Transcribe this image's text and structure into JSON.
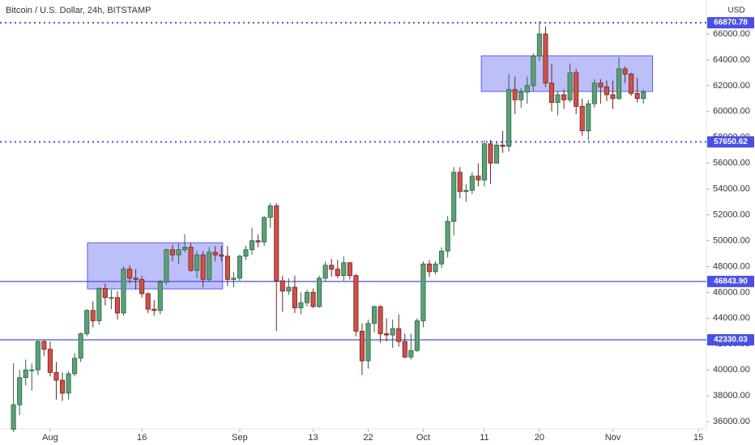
{
  "chart_data": {
    "type": "candlestick",
    "title": "Bitcoin / U.S. Dollar, 24h, BITSTAMP",
    "y_axis_label": "USD",
    "up_color": "#5aa176",
    "up_border": "#2d6444",
    "down_color": "#cf5149",
    "down_border": "#6e231f",
    "level_color": "#4a50e6",
    "zone_color": "#5a5ff0",
    "x": [
      -6,
      -5,
      -4,
      -3,
      -2,
      -1,
      0,
      1,
      2,
      3,
      4,
      5,
      6,
      7,
      8,
      9,
      10,
      11,
      12,
      13,
      14,
      15,
      16,
      17,
      18,
      19,
      20,
      21,
      22,
      23,
      24,
      25,
      26,
      27,
      28,
      29,
      30,
      31,
      32,
      33,
      34,
      35,
      36,
      37,
      38,
      39,
      40,
      41,
      42,
      43,
      44,
      45,
      46,
      47,
      48,
      49,
      50,
      51,
      52,
      53,
      54,
      55,
      56,
      57,
      58,
      59,
      60,
      61,
      62,
      63,
      64,
      65,
      66,
      67,
      68,
      69,
      70,
      71,
      72,
      73,
      74,
      75,
      76,
      77,
      78,
      79,
      80,
      81,
      82,
      83,
      84,
      85,
      86,
      87,
      88,
      89,
      90,
      91,
      92,
      93,
      94,
      95,
      96,
      97
    ],
    "open": [
      35400,
      37300,
      39400,
      40000,
      40000,
      42200,
      41600,
      39800,
      39200,
      38200,
      39700,
      40900,
      42800,
      44600,
      43800,
      46300,
      45600,
      45600,
      44400,
      47800,
      47100,
      47000,
      45900,
      44700,
      44600,
      46800,
      49300,
      48900,
      49300,
      49500,
      47700,
      48900,
      47000,
      49100,
      48900,
      48800,
      47000,
      47100,
      48800,
      49300,
      50000,
      49900,
      51800,
      52700,
      46900,
      46100,
      46400,
      44800,
      45200,
      46000,
      44900,
      47100,
      48100,
      47800,
      47300,
      48300,
      47300,
      43000,
      40700,
      43600,
      44900,
      42800,
      42700,
      43200,
      42200,
      41000,
      41500,
      43800,
      48200,
      47600,
      48200,
      49200,
      51500,
      55300,
      53800,
      53900,
      55000,
      54700,
      57500,
      56000,
      57400,
      57300,
      61700,
      60900,
      61500,
      62000,
      64300,
      66000,
      62200,
      60700,
      61300,
      60900,
      63000,
      60400,
      58500,
      60600,
      62200,
      61900,
      61300,
      61000,
      63300,
      62900,
      61400,
      61000
    ],
    "high": [
      40500,
      40000,
      40800,
      40500,
      42300,
      42300,
      42200,
      40600,
      39800,
      39900,
      41300,
      42900,
      44700,
      45300,
      46400,
      46700,
      46200,
      46100,
      48000,
      48100,
      47800,
      47300,
      46000,
      45400,
      47000,
      49400,
      49700,
      49800,
      50500,
      49800,
      49200,
      49200,
      49500,
      49600,
      49600,
      49600,
      47600,
      48900,
      49600,
      51000,
      50500,
      51900,
      52900,
      52900,
      47300,
      47100,
      47300,
      46000,
      46200,
      46300,
      47300,
      48400,
      48600,
      48500,
      48800,
      48300,
      47400,
      43600,
      43900,
      45000,
      45000,
      44000,
      43900,
      44300,
      42800,
      42800,
      44000,
      48400,
      48500,
      48400,
      49500,
      51900,
      55700,
      55700,
      54400,
      55300,
      56000,
      57800,
      57800,
      57700,
      58500,
      62900,
      62700,
      61800,
      62700,
      64500,
      67000,
      66600,
      63700,
      61600,
      61700,
      63700,
      63300,
      61000,
      60900,
      62500,
      62500,
      62400,
      62400,
      64200,
      63500,
      63000,
      62600,
      61700
    ],
    "low": [
      35200,
      36500,
      38800,
      38400,
      39600,
      41100,
      39500,
      37700,
      37600,
      37700,
      39500,
      40600,
      42600,
      43300,
      43500,
      45000,
      44700,
      43900,
      44200,
      46700,
      46200,
      45600,
      44400,
      44200,
      44300,
      46600,
      48400,
      48200,
      49100,
      47600,
      47100,
      46400,
      46800,
      48400,
      48400,
      46500,
      46400,
      46900,
      48500,
      48900,
      49500,
      49600,
      51000,
      43000,
      44500,
      45800,
      44400,
      44300,
      44900,
      44800,
      44800,
      46800,
      47200,
      47100,
      46900,
      47000,
      42600,
      39600,
      40100,
      42900,
      42100,
      42200,
      41700,
      41800,
      40900,
      40800,
      41400,
      43300,
      47200,
      47400,
      47900,
      48700,
      50400,
      53300,
      53000,
      53600,
      54200,
      54200,
      54400,
      56100,
      56800,
      56900,
      59800,
      60300,
      60600,
      61600,
      63900,
      61900,
      60000,
      59700,
      60200,
      60700,
      59800,
      58100,
      57800,
      60300,
      60600,
      60800,
      60200,
      60900,
      62200,
      61200,
      60700,
      60600
    ],
    "close": [
      37300,
      39400,
      40000,
      40000,
      42200,
      41600,
      39800,
      39200,
      38200,
      39700,
      40900,
      42800,
      44600,
      43800,
      46300,
      45600,
      45600,
      44400,
      47800,
      47100,
      47000,
      45900,
      44700,
      44600,
      46800,
      49300,
      48900,
      49300,
      49500,
      47700,
      48900,
      47000,
      49100,
      48900,
      48800,
      47000,
      47100,
      48800,
      49300,
      50000,
      49900,
      51800,
      52700,
      46900,
      46100,
      46400,
      44800,
      45200,
      46000,
      44900,
      47100,
      48100,
      47800,
      47300,
      48300,
      47300,
      43000,
      40700,
      43600,
      44900,
      42800,
      42700,
      43200,
      42200,
      41000,
      41500,
      43800,
      48200,
      47600,
      48200,
      49200,
      51500,
      55300,
      53800,
      53900,
      55000,
      54700,
      57500,
      56000,
      57400,
      57300,
      61700,
      60900,
      61500,
      62000,
      64300,
      66000,
      62200,
      60700,
      61300,
      60900,
      63000,
      60400,
      58500,
      60600,
      62200,
      61900,
      61300,
      61000,
      63300,
      62900,
      61400,
      61000,
      61500
    ],
    "xlim": [
      -8.2,
      107.3
    ],
    "xticks": [
      {
        "value": 0,
        "label": "Aug"
      },
      {
        "value": 15,
        "label": "16"
      },
      {
        "value": 31,
        "label": "Sep"
      },
      {
        "value": 43,
        "label": "13"
      },
      {
        "value": 52,
        "label": "22"
      },
      {
        "value": 61,
        "label": "Oct"
      },
      {
        "value": 71,
        "label": "11"
      },
      {
        "value": 80,
        "label": "20"
      },
      {
        "value": 92,
        "label": "Nov"
      },
      {
        "value": 106,
        "label": "15"
      }
    ],
    "ylim": [
      35440,
      68630
    ],
    "yticks": [
      {
        "value": 36000,
        "label": "36000.00"
      },
      {
        "value": 38000,
        "label": "38000.00"
      },
      {
        "value": 40000,
        "label": "40000.00"
      },
      {
        "value": 42000,
        "label": "42000.00"
      },
      {
        "value": 44000,
        "label": "44000.00"
      },
      {
        "value": 46000,
        "label": "46000.00"
      },
      {
        "value": 48000,
        "label": "48000.00"
      },
      {
        "value": 50000,
        "label": "50000.00"
      },
      {
        "value": 52000,
        "label": "52000.00"
      },
      {
        "value": 54000,
        "label": "54000.00"
      },
      {
        "value": 56000,
        "label": "56000.00"
      },
      {
        "value": 58000,
        "label": "58000.00"
      },
      {
        "value": 60000,
        "label": "60000.00"
      },
      {
        "value": 62000,
        "label": "62000.00"
      },
      {
        "value": 64000,
        "label": "64000.00"
      },
      {
        "value": 66000,
        "label": "66000.00"
      }
    ],
    "levels": [
      {
        "value": 66870.78,
        "label": "66870.78",
        "style": "dotted"
      },
      {
        "value": 57650.62,
        "label": "57650.62",
        "style": "dotted"
      },
      {
        "value": 46843.9,
        "label": "46843.90",
        "style": "solid"
      },
      {
        "value": 42330.03,
        "label": "42330.03",
        "style": "solid"
      }
    ],
    "zones": [
      {
        "x": [
          6.1,
          28.2
        ],
        "y": [
          46270,
          49840
        ]
      },
      {
        "x": [
          70.5,
          98.5
        ],
        "y": [
          61550,
          64310
        ]
      }
    ]
  }
}
